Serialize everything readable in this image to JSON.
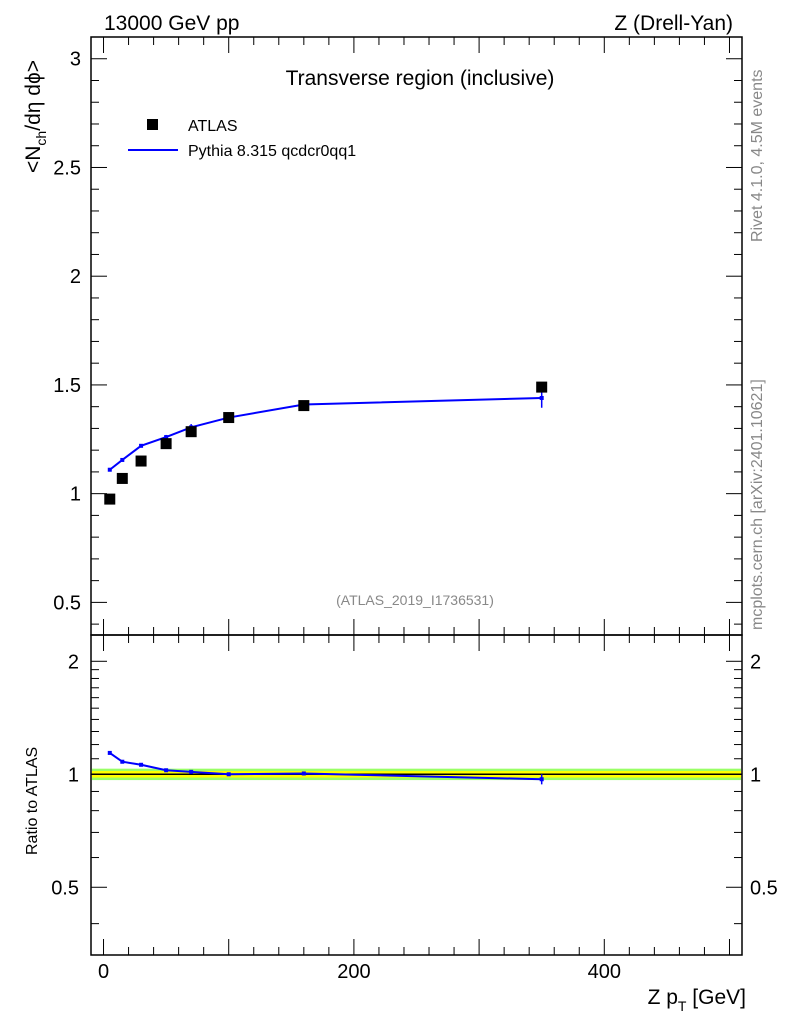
{
  "header": {
    "left": "13000 GeV pp",
    "right": "Z (Drell-Yan)"
  },
  "side": {
    "rivet": "Rivet 4.1.0,  4.5M events",
    "mcplots": "mcplots.cern.ch [arXiv:2401.10621]"
  },
  "colors": {
    "data": "#000000",
    "mc": "#0000ff",
    "band_inner": "#ffff00",
    "band_outer": "#99ff66"
  },
  "chart_data": [
    {
      "type": "scatter",
      "title": "Transverse region (inclusive)",
      "ylabel": "<N_ch/dη dϕ>",
      "xlabel": "Z p_T [GeV]",
      "watermark": "(ATLAS_2019_I1736531)",
      "xlim": [
        -10,
        510
      ],
      "ylim": [
        0.35,
        3.1
      ],
      "yticks": [
        0.5,
        1,
        1.5,
        2,
        2.5,
        3
      ],
      "ytick_labels": [
        "0.5",
        "1",
        "1.5",
        "2",
        "2.5",
        "3"
      ],
      "legend_position": "top-left",
      "series": [
        {
          "name": "ATLAS",
          "marker": "square",
          "x": [
            5,
            15,
            30,
            50,
            70,
            100,
            160,
            350
          ],
          "y": [
            0.975,
            1.07,
            1.15,
            1.23,
            1.285,
            1.35,
            1.405,
            1.49
          ]
        },
        {
          "name": "Pythia 8.315 qcdcr0qq1",
          "marker": "line",
          "x": [
            5,
            15,
            30,
            50,
            70,
            100,
            160,
            350
          ],
          "y": [
            1.11,
            1.155,
            1.22,
            1.26,
            1.305,
            1.35,
            1.41,
            1.44
          ],
          "yerr": [
            0.005,
            0.005,
            0.008,
            0.01,
            0.015,
            0.015,
            0.015,
            0.045
          ]
        }
      ]
    },
    {
      "type": "line",
      "ylabel": "Ratio to ATLAS",
      "xlabel": "Z p_T [GeV]",
      "xlim": [
        -10,
        510
      ],
      "ylim": [
        0.33,
        2.35
      ],
      "yticks": [
        0.5,
        1,
        2
      ],
      "ytick_labels": [
        "0.5",
        "1",
        "2"
      ],
      "xticks": [
        0,
        200,
        400
      ],
      "xtick_labels": [
        "0",
        "200",
        "400"
      ],
      "band": {
        "inner": [
          0.98,
          1.02
        ],
        "outer": [
          0.965,
          1.035
        ]
      },
      "series": [
        {
          "name": "Pythia 8.315 qcdcr0qq1",
          "x": [
            5,
            15,
            30,
            50,
            70,
            100,
            160,
            350
          ],
          "y": [
            1.14,
            1.08,
            1.06,
            1.025,
            1.015,
            1.0,
            1.005,
            0.97
          ],
          "yerr": [
            0.005,
            0.005,
            0.007,
            0.008,
            0.01,
            0.01,
            0.011,
            0.03
          ]
        }
      ]
    }
  ]
}
